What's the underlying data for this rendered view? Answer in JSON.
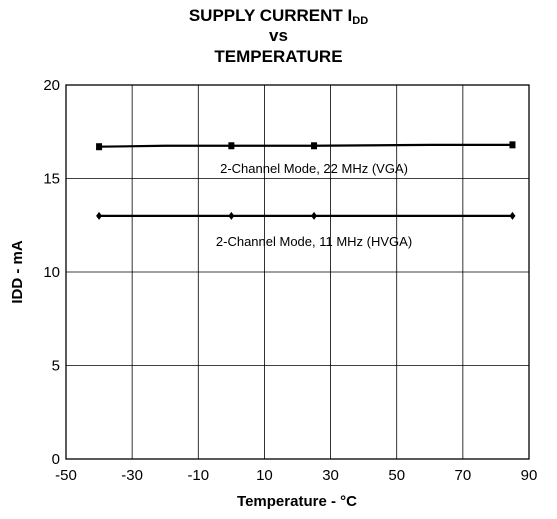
{
  "chart_data": {
    "type": "line",
    "title_line1": "SUPPLY CURRENT I",
    "title_sub": "DD",
    "title_line2": "vs",
    "title_line3": "TEMPERATURE",
    "xlabel": "Temperature - °C",
    "ylabel": "IDD - mA",
    "xlim": [
      -50,
      90
    ],
    "ylim": [
      0,
      20
    ],
    "x_ticks": [
      -50,
      -30,
      -10,
      10,
      30,
      50,
      70,
      90
    ],
    "y_ticks": [
      0,
      5,
      10,
      15,
      20
    ],
    "grid": true,
    "series": [
      {
        "name": "2-Channel Mode, 22 MHz (VGA)",
        "marker": "square",
        "color": "#000000",
        "x": [
          -40,
          -20,
          0,
          25,
          60,
          85
        ],
        "y": [
          16.7,
          16.75,
          16.75,
          16.75,
          16.8,
          16.8
        ],
        "marker_x": [
          -40,
          0,
          25,
          85
        ]
      },
      {
        "name": "2-Channel Mode, 11 MHz (HVGA)",
        "marker": "diamond",
        "color": "#000000",
        "x": [
          -40,
          0,
          25,
          85
        ],
        "y": [
          13.0,
          13.0,
          13.0,
          13.0
        ],
        "marker_x": [
          -40,
          0,
          25,
          85
        ]
      }
    ],
    "annotations": [
      {
        "text": "2-Channel Mode, 22 MHz (VGA)",
        "x": 25,
        "y": 15.5
      },
      {
        "text": "2-Channel Mode, 11 MHz (HVGA)",
        "x": 25,
        "y": 11.6
      }
    ]
  }
}
